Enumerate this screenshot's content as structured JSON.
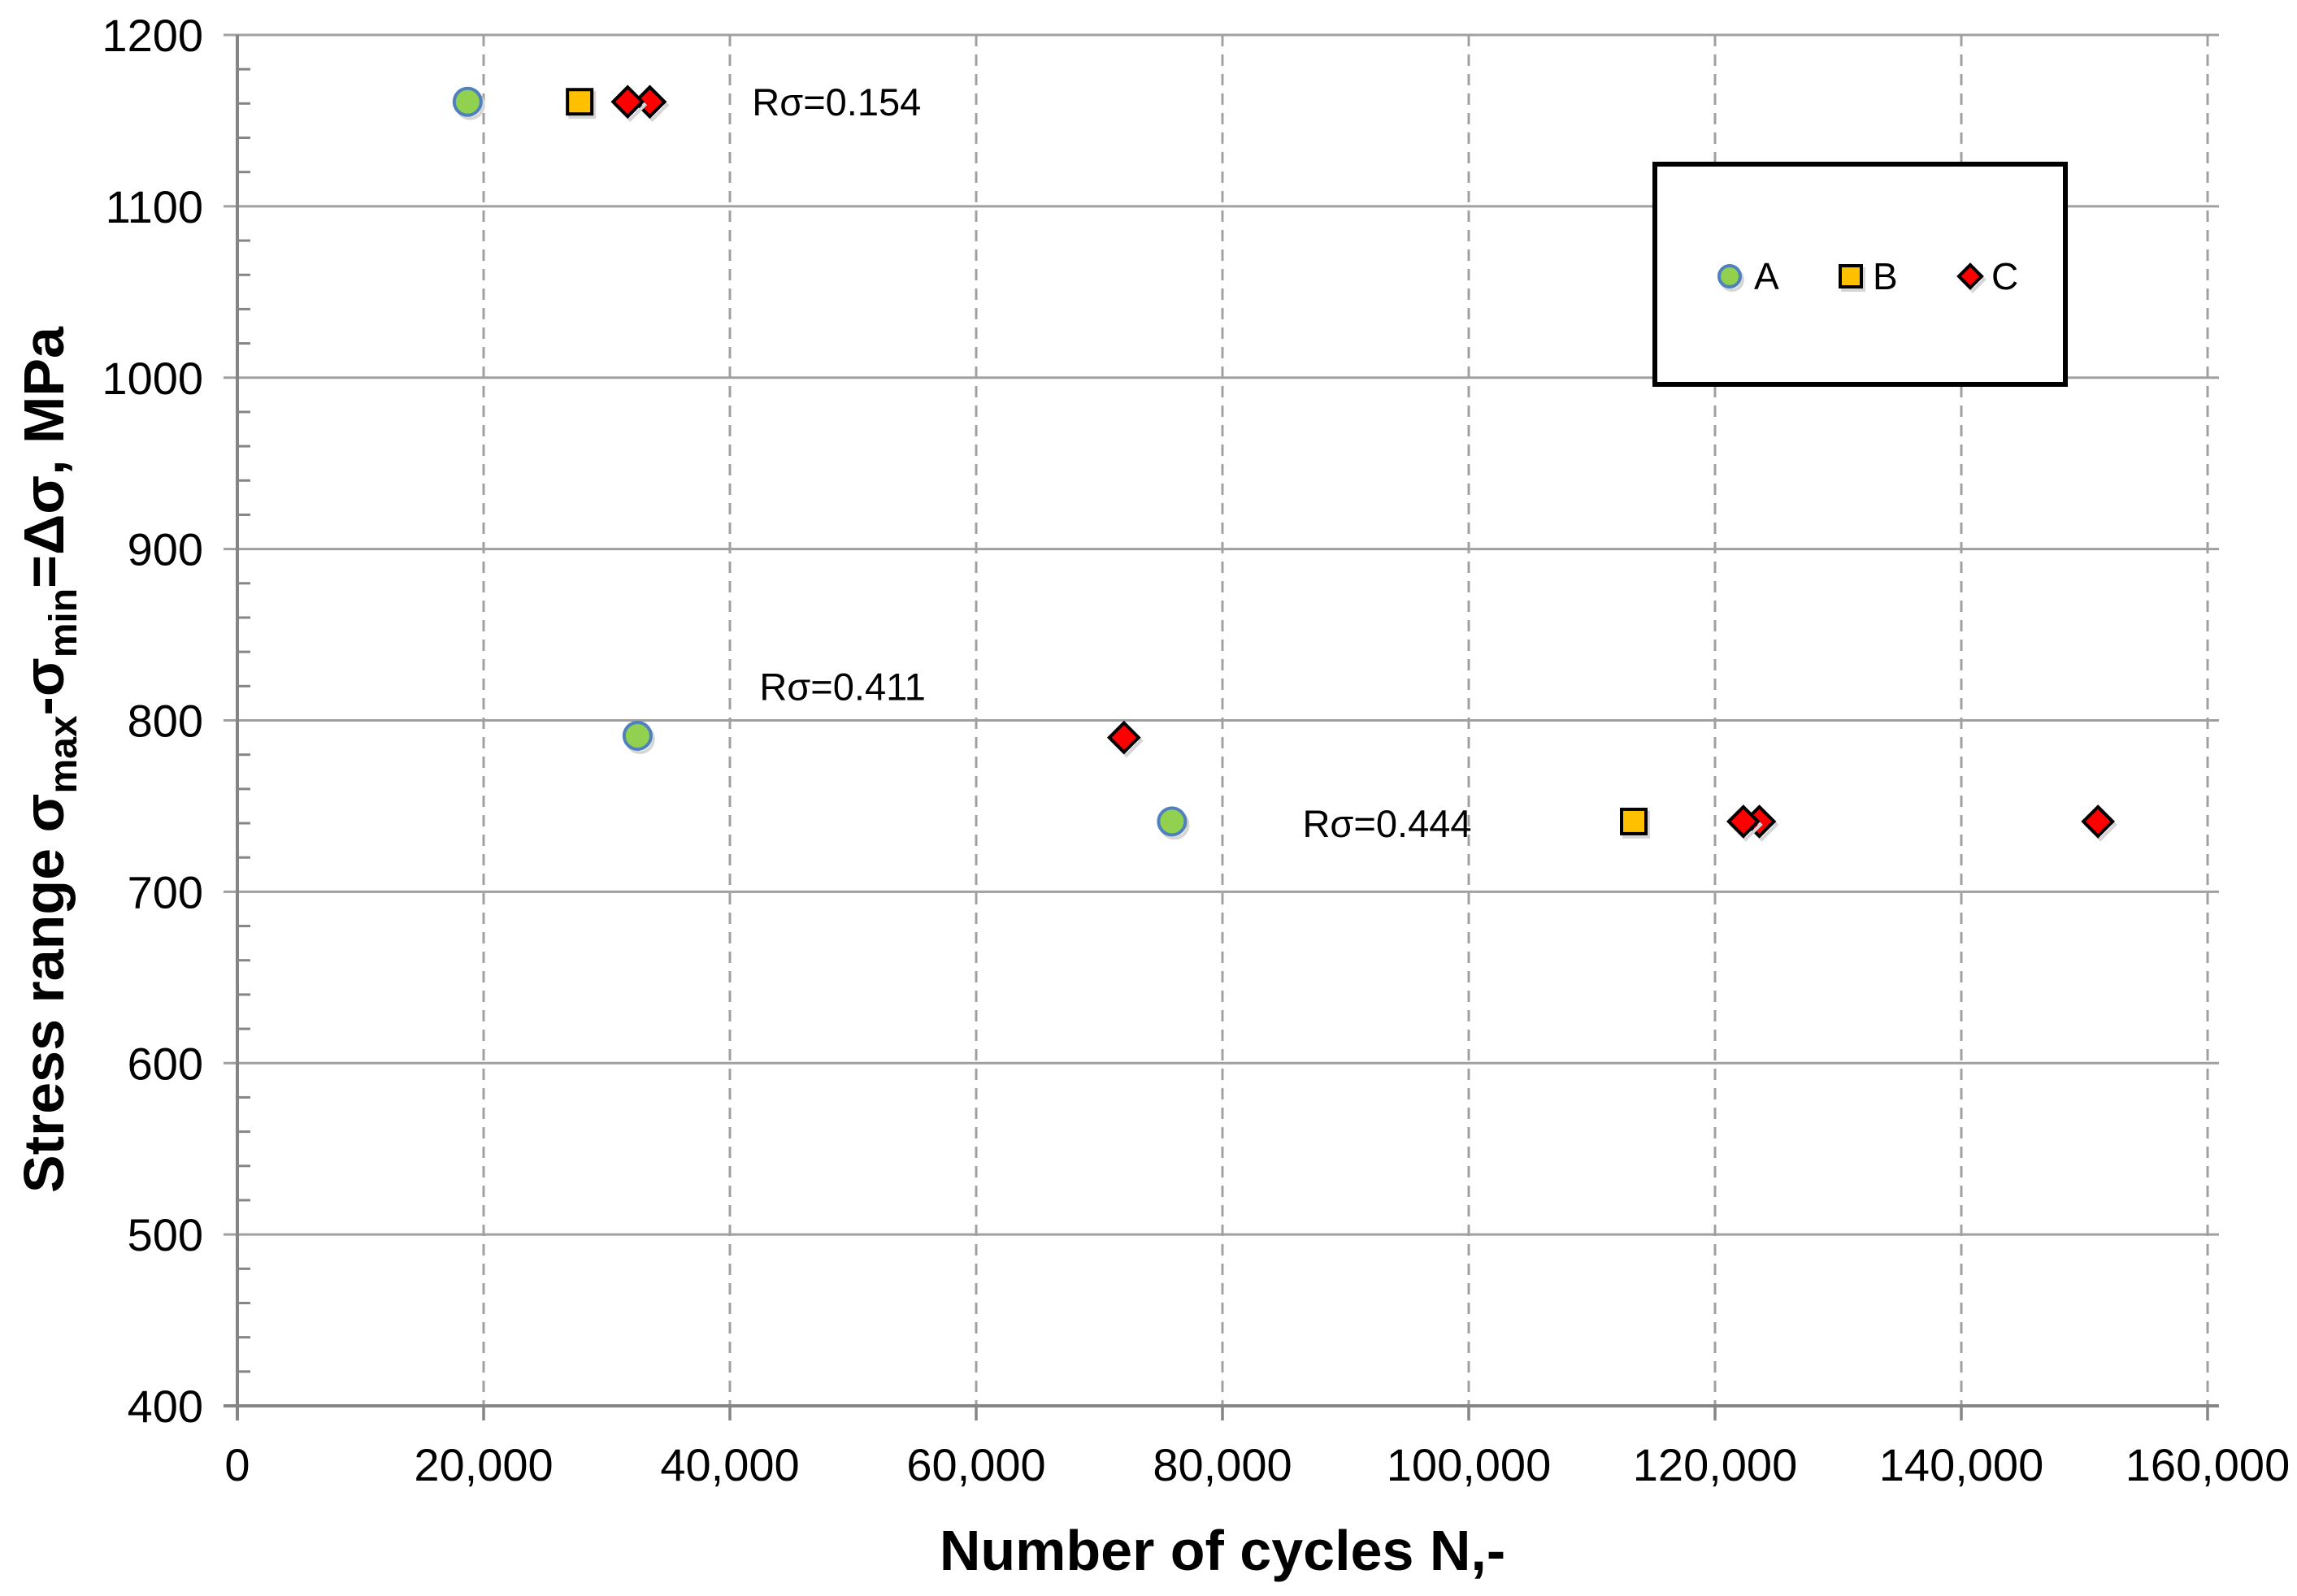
{
  "page": {
    "background": "#ffffff"
  },
  "chart_data": {
    "type": "scatter",
    "title": "",
    "xlabel": "Number of cycles N,-",
    "ylabel": "Stress range σmax-σmin=Δσ, MPa",
    "ylabel_segments": [
      {
        "text": "Stress range σ",
        "sub": false
      },
      {
        "text": "max",
        "sub": true
      },
      {
        "text": "-σ",
        "sub": false
      },
      {
        "text": "min",
        "sub": true
      },
      {
        "text": "=Δσ, MPa",
        "sub": false
      }
    ],
    "xlim": [
      0,
      160000
    ],
    "ylim": [
      400,
      1200
    ],
    "x_tick_step": 20000,
    "y_tick_step": 100,
    "y_minor_tick_step": 20,
    "x_tick_labels": [
      "0",
      "20,000",
      "40,000",
      "60,000",
      "80,000",
      "100,000",
      "120,000",
      "140,000",
      "160,000"
    ],
    "y_tick_labels": [
      "400",
      "500",
      "600",
      "700",
      "800",
      "900",
      "1000",
      "1100",
      "1200"
    ],
    "grid": {
      "horizontal": "solid",
      "vertical": "dashed",
      "color": "#a0a0a0",
      "axis_color": "#858585"
    },
    "series": [
      {
        "name": "A",
        "marker": "circle",
        "fill": "#92d050",
        "stroke": "#4f81bd",
        "points": [
          [
            18700,
            1161
          ],
          [
            32500,
            791
          ],
          [
            75900,
            741
          ]
        ]
      },
      {
        "name": "B",
        "marker": "square",
        "fill": "#ffc000",
        "stroke": "#000000",
        "points": [
          [
            27800,
            1161
          ],
          [
            113400,
            741
          ]
        ]
      },
      {
        "name": "C",
        "marker": "diamond",
        "fill": "#ff0000",
        "stroke": "#000000",
        "points": [
          [
            33500,
            1161
          ],
          [
            31700,
            1161
          ],
          [
            72000,
            790
          ],
          [
            123600,
            741
          ],
          [
            122300,
            741
          ],
          [
            151100,
            741
          ]
        ]
      }
    ],
    "annotations": [
      {
        "text": "Rσ=0.154",
        "x": 41800,
        "y": 1161
      },
      {
        "text": "Rσ=0.411",
        "x": 42400,
        "y": 820
      },
      {
        "text": "Rσ=0.444",
        "x": 86500,
        "y": 740
      }
    ],
    "legend": {
      "position": "top-right",
      "entries": [
        {
          "label": "A",
          "series": "A"
        },
        {
          "label": "B",
          "series": "B"
        },
        {
          "label": "C",
          "series": "C"
        }
      ]
    }
  }
}
